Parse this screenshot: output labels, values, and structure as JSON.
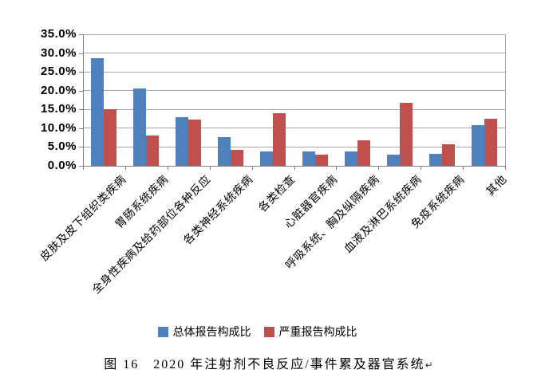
{
  "chart_data": {
    "type": "bar",
    "title": "",
    "xlabel": "",
    "ylabel": "",
    "categories": [
      "皮肤及皮下组织类疾病",
      "胃肠系统疾病",
      "全身性疾病及给药部位各种反应",
      "各类神经系统疾病",
      "各类检查",
      "心脏器官疾病",
      "呼吸系统、胸及纵隔疾病",
      "血液及淋巴系统疾病",
      "免疫系统疾病",
      "其他"
    ],
    "series": [
      {
        "name": "总体报告构成比",
        "color": "#4F81BD",
        "values": [
          28.7,
          20.5,
          12.9,
          7.6,
          3.8,
          3.8,
          3.8,
          2.9,
          3.2,
          10.8
        ]
      },
      {
        "name": "严重报告构成比",
        "color": "#C0504D",
        "values": [
          15.0,
          8.1,
          12.4,
          4.2,
          14.0,
          3.0,
          6.8,
          16.8,
          5.7,
          12.6
        ]
      }
    ],
    "ylim": [
      0,
      35
    ],
    "ytick_step": 5,
    "ytick_labels": [
      "0.0%",
      "5.0%",
      "10.0%",
      "15.0%",
      "20.0%",
      "25.0%",
      "30.0%",
      "35.0%"
    ],
    "grid": true,
    "legend_position": "bottom"
  },
  "caption": {
    "text": "图 16　2020 年注射剂不良反应/事件累及器官系统",
    "paragraph_mark": "↵"
  },
  "colors": {
    "series_total": "#4F81BD",
    "series_serious": "#C0504D",
    "gridline": "#A6A6A6",
    "axis": "#7F7F7F",
    "text": "#000000",
    "background": "#FFFFFF"
  }
}
